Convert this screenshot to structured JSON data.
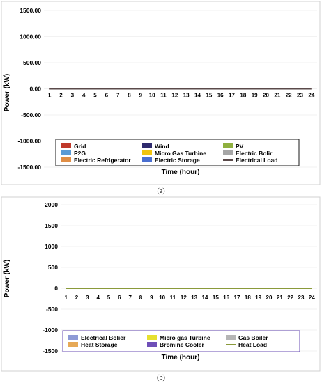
{
  "chart_data": [
    {
      "type": "bar",
      "stacked": true,
      "panel_label": "(a)",
      "xlabel": "Time (hour)",
      "ylabel": "Power (kW)",
      "ylim": [
        -1500,
        1500
      ],
      "yticks": [
        1500,
        1000,
        500,
        0,
        -500,
        -1000,
        -1500
      ],
      "ytick_labels": [
        "1500.00",
        "1000.00",
        "500.00",
        "0.00",
        "-500.00",
        "-1000.00",
        "-1500.00"
      ],
      "categories": [
        "1",
        "2",
        "3",
        "4",
        "5",
        "6",
        "7",
        "8",
        "9",
        "10",
        "11",
        "12",
        "13",
        "14",
        "15",
        "16",
        "17",
        "18",
        "19",
        "20",
        "21",
        "22",
        "23",
        "24"
      ],
      "legend_position": "bottom",
      "grid": true,
      "series": [
        {
          "name": "Grid",
          "color": "#c0392b",
          "values": [
            0,
            0,
            0,
            0,
            0,
            0,
            0,
            0,
            0,
            0,
            0,
            0,
            0,
            0,
            0,
            0,
            0,
            0,
            0,
            0,
            0,
            0,
            0,
            0
          ]
        },
        {
          "name": "Wind",
          "color": "#2e2a6e",
          "values": [
            0,
            0,
            0,
            0,
            0,
            0,
            0,
            0,
            0,
            0,
            0,
            0,
            0,
            0,
            0,
            0,
            0,
            0,
            0,
            0,
            0,
            0,
            0,
            0
          ]
        },
        {
          "name": "PV",
          "color": "#8fb03e",
          "values": [
            0,
            0,
            0,
            0,
            0,
            0,
            0,
            0,
            0,
            0,
            0,
            0,
            0,
            0,
            0,
            0,
            0,
            0,
            0,
            0,
            0,
            0,
            0,
            0
          ]
        },
        {
          "name": "P2G",
          "color": "#5b9bd5",
          "values": [
            0,
            0,
            0,
            0,
            0,
            0,
            0,
            0,
            0,
            0,
            0,
            0,
            0,
            0,
            0,
            0,
            0,
            0,
            0,
            0,
            0,
            0,
            0,
            0
          ]
        },
        {
          "name": "Micro Gas Turbine",
          "color": "#f1c40f",
          "values": [
            0,
            0,
            0,
            0,
            0,
            0,
            0,
            0,
            0,
            0,
            0,
            0,
            0,
            0,
            0,
            0,
            0,
            0,
            0,
            0,
            0,
            0,
            0,
            0
          ]
        },
        {
          "name": "Electric Bolir",
          "color": "#a6a6a6",
          "values": [
            0,
            0,
            0,
            0,
            0,
            0,
            0,
            0,
            0,
            0,
            0,
            0,
            0,
            0,
            0,
            0,
            0,
            0,
            0,
            0,
            0,
            0,
            0,
            0
          ]
        },
        {
          "name": "Electric Refrigerator",
          "color": "#e08e45",
          "values": [
            0,
            0,
            0,
            0,
            0,
            0,
            0,
            0,
            0,
            0,
            0,
            0,
            0,
            0,
            0,
            0,
            0,
            0,
            0,
            0,
            0,
            0,
            0,
            0
          ]
        },
        {
          "name": "Electric Storage",
          "color": "#4a6fd1",
          "values": [
            0,
            0,
            0,
            0,
            0,
            0,
            0,
            0,
            0,
            0,
            0,
            0,
            0,
            0,
            0,
            0,
            0,
            0,
            0,
            0,
            0,
            0,
            0,
            0
          ]
        },
        {
          "name": "Electrical Load",
          "color": "#5a4a4a",
          "kind": "line",
          "values": [
            0,
            0,
            0,
            0,
            0,
            0,
            0,
            0,
            0,
            0,
            0,
            0,
            0,
            0,
            0,
            0,
            0,
            0,
            0,
            0,
            0,
            0,
            0,
            0
          ]
        }
      ]
    },
    {
      "type": "bar",
      "stacked": true,
      "panel_label": "(b)",
      "xlabel": "Time (hour)",
      "ylabel": "Power (kW)",
      "ylim": [
        -1500,
        2000
      ],
      "yticks": [
        2000,
        1500,
        1000,
        500,
        0,
        -500,
        -1000,
        -1500
      ],
      "ytick_labels": [
        "2000",
        "1500",
        "1000",
        "500",
        "0",
        "-500",
        "-1000",
        "-1500"
      ],
      "categories": [
        "1",
        "2",
        "3",
        "4",
        "5",
        "6",
        "7",
        "8",
        "9",
        "10",
        "11",
        "12",
        "13",
        "14",
        "15",
        "16",
        "17",
        "18",
        "19",
        "20",
        "21",
        "22",
        "23",
        "24"
      ],
      "legend_position": "bottom",
      "grid": true,
      "series": [
        {
          "name": "Electrical Bolier",
          "color": "#8e9ad6",
          "values": [
            0,
            0,
            0,
            0,
            0,
            0,
            0,
            0,
            0,
            0,
            0,
            0,
            0,
            0,
            0,
            0,
            0,
            0,
            0,
            0,
            0,
            0,
            0,
            0
          ]
        },
        {
          "name": "Micro gas Turbine",
          "color": "#e6e02e",
          "values": [
            0,
            0,
            0,
            0,
            0,
            0,
            0,
            0,
            0,
            0,
            0,
            0,
            0,
            0,
            0,
            0,
            0,
            0,
            0,
            0,
            0,
            0,
            0,
            0
          ]
        },
        {
          "name": "Gas Boiler",
          "color": "#b5b5b5",
          "values": [
            0,
            0,
            0,
            0,
            0,
            0,
            0,
            0,
            0,
            0,
            0,
            0,
            0,
            0,
            0,
            0,
            0,
            0,
            0,
            0,
            0,
            0,
            0,
            0
          ]
        },
        {
          "name": "Heat Storage",
          "color": "#e6a957",
          "values": [
            0,
            0,
            0,
            0,
            0,
            0,
            0,
            0,
            0,
            0,
            0,
            0,
            0,
            0,
            0,
            0,
            0,
            0,
            0,
            0,
            0,
            0,
            0,
            0
          ]
        },
        {
          "name": "Bromine Cooler",
          "color": "#6f4fb8",
          "values": [
            0,
            0,
            0,
            0,
            0,
            0,
            0,
            0,
            0,
            0,
            0,
            0,
            0,
            0,
            0,
            0,
            0,
            0,
            0,
            0,
            0,
            0,
            0,
            0
          ]
        },
        {
          "name": "Heat Load",
          "color": "#8a9a3a",
          "kind": "line",
          "values": [
            0,
            0,
            0,
            0,
            0,
            0,
            0,
            0,
            0,
            0,
            0,
            0,
            0,
            0,
            0,
            0,
            0,
            0,
            0,
            0,
            0,
            0,
            0,
            0
          ]
        }
      ]
    }
  ]
}
